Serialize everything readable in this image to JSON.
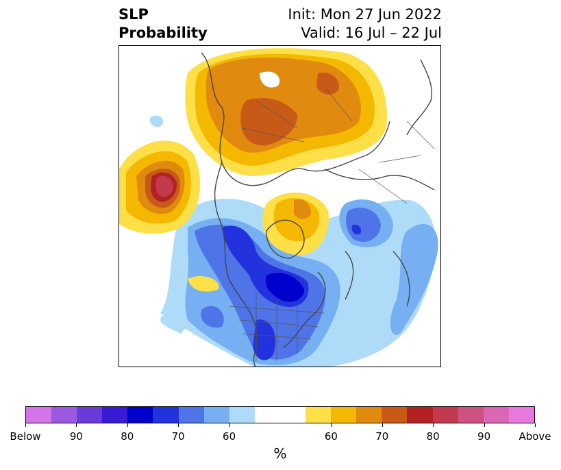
{
  "header": {
    "left_line1": "SLP",
    "left_line2": "Probability",
    "right_line1": "Init: Mon 27 Jun 2022",
    "right_line2": "Valid: 16 Jul – 22 Jul"
  },
  "colorbar": {
    "unit": "%",
    "colors": [
      "#d474e8",
      "#9b59e0",
      "#6a3bd6",
      "#3a1ad2",
      "#0000cc",
      "#2233dd",
      "#4e74e8",
      "#76b0f2",
      "#aedbf8",
      "#ffffff",
      "#ffffff",
      "#fde047",
      "#f5b800",
      "#e08a10",
      "#c85a18",
      "#b22222",
      "#c33a4e",
      "#cd5283",
      "#db66b4",
      "#e878e0"
    ],
    "ticks": [
      "Below",
      "90",
      "80",
      "70",
      "60",
      "60",
      "70",
      "80",
      "90",
      "Above"
    ]
  },
  "map": {
    "description_colors": {
      "light_blue": "#aedbf8",
      "mid_blue": "#76b0f2",
      "blue": "#4e74e8",
      "royal_blue": "#2233dd",
      "deep_blue": "#0000cc",
      "yellow": "#fde047",
      "gold": "#f5b800",
      "orange": "#e08a10",
      "rust": "#c85a18",
      "red": "#b22222",
      "crimson": "#c33a4e"
    }
  }
}
